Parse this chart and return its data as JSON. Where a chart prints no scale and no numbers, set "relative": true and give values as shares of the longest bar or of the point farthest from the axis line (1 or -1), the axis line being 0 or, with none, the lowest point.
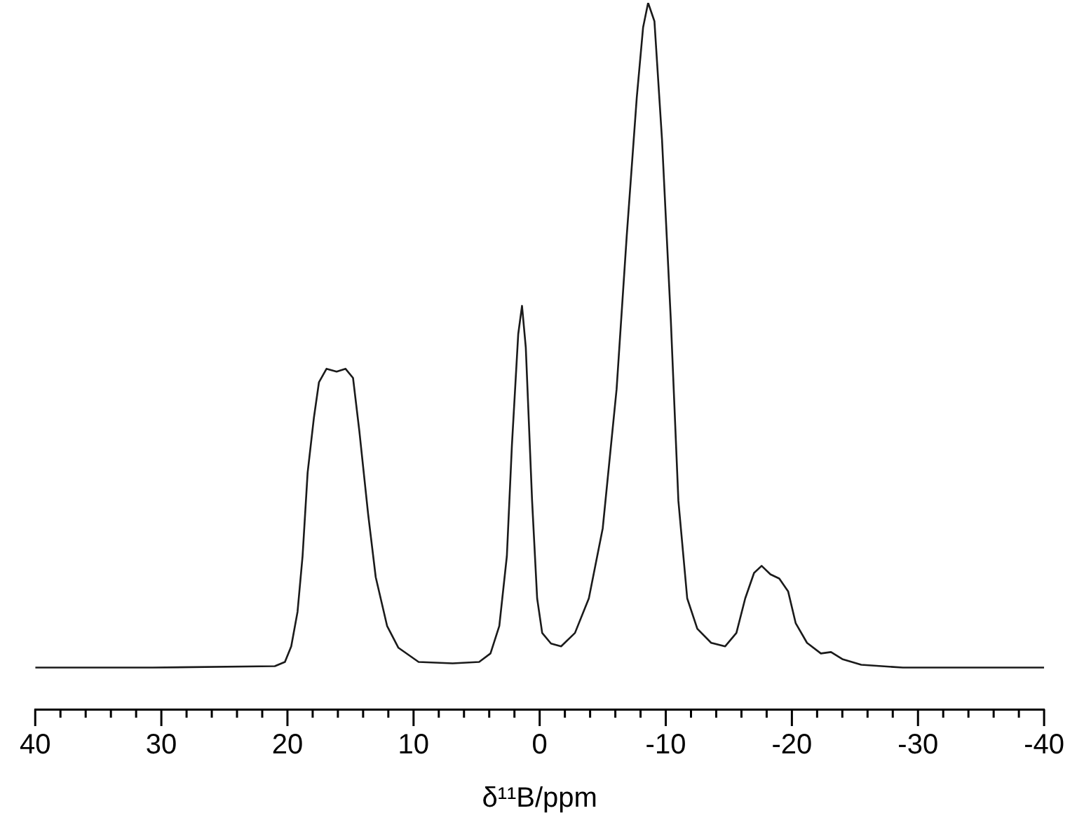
{
  "chart_data": {
    "type": "line",
    "xlabel": "δ¹¹B/ppm",
    "relative": true,
    "marker": "none",
    "line_style": "solid",
    "grid": false,
    "legend": false,
    "tick_labels": "x",
    "xlim": [
      40,
      -40
    ],
    "xticks": [
      40,
      {
        "value": 38,
        "label": null
      },
      {
        "value": 36,
        "label": null
      },
      {
        "value": 34,
        "label": null
      },
      {
        "value": 32,
        "label": null
      },
      30,
      {
        "value": 28,
        "label": null
      },
      {
        "value": 26,
        "label": null
      },
      {
        "value": 24,
        "label": null
      },
      {
        "value": 22,
        "label": null
      },
      20,
      {
        "value": 18,
        "label": null
      },
      {
        "value": 16,
        "label": null
      },
      {
        "value": 14,
        "label": null
      },
      {
        "value": 12,
        "label": null
      },
      10,
      {
        "value": 8,
        "label": null
      },
      {
        "value": 6,
        "label": null
      },
      {
        "value": 4,
        "label": null
      },
      {
        "value": 2,
        "label": null
      },
      0,
      {
        "value": -2,
        "label": null
      },
      {
        "value": -4,
        "label": null
      },
      {
        "value": -6,
        "label": null
      },
      {
        "value": -8,
        "label": null
      },
      -10,
      {
        "value": -12,
        "label": null
      },
      {
        "value": -14,
        "label": null
      },
      {
        "value": -16,
        "label": null
      },
      {
        "value": -18,
        "label": null
      },
      -20,
      {
        "value": -22,
        "label": null
      },
      {
        "value": -24,
        "label": null
      },
      {
        "value": -26,
        "label": null
      },
      {
        "value": -28,
        "label": null
      },
      -30,
      {
        "value": -32,
        "label": null
      },
      {
        "value": -34,
        "label": null
      },
      {
        "value": -36,
        "label": null
      },
      {
        "value": -38,
        "label": null
      },
      -40
    ],
    "series": [
      {
        "color": "#1a1a1a",
        "x": [
          40,
          30.7,
          21,
          20.2,
          19.7,
          19.2,
          18.8,
          18.4,
          17.9,
          17.5,
          16.9,
          16.1,
          15.4,
          14.8,
          14.3,
          13.6,
          13.0,
          12.1,
          11.2,
          9.6,
          6.9,
          4.8,
          3.9,
          3.2,
          2.6,
          2.2,
          1.7,
          1.4,
          1.1,
          0.6,
          0.2,
          -0.2,
          -0.9,
          -1.7,
          -2.8,
          -3.9,
          -5.0,
          -6.1,
          -6.9,
          -7.7,
          -8.2,
          -8.6,
          -9.1,
          -9.7,
          -10.4,
          -11.0,
          -11.7,
          -12.5,
          -13.6,
          -14.7,
          -15.6,
          -16.3,
          -17.0,
          -17.6,
          -18.3,
          -19.0,
          -19.7,
          -20.3,
          -21.2,
          -22.3,
          -23.1,
          -24.0,
          -25.5,
          -28.8,
          -40
        ],
        "values": [
          0.059,
          0.059,
          0.061,
          0.067,
          0.089,
          0.138,
          0.217,
          0.335,
          0.413,
          0.463,
          0.482,
          0.478,
          0.482,
          0.469,
          0.394,
          0.276,
          0.187,
          0.118,
          0.087,
          0.067,
          0.065,
          0.067,
          0.079,
          0.118,
          0.217,
          0.374,
          0.531,
          0.571,
          0.512,
          0.295,
          0.157,
          0.108,
          0.093,
          0.089,
          0.108,
          0.157,
          0.256,
          0.453,
          0.669,
          0.866,
          0.965,
          1,
          0.974,
          0.807,
          0.551,
          0.295,
          0.157,
          0.114,
          0.094,
          0.089,
          0.108,
          0.157,
          0.193,
          0.203,
          0.191,
          0.185,
          0.167,
          0.122,
          0.094,
          0.079,
          0.081,
          0.071,
          0.063,
          0.059,
          0.059
        ]
      }
    ]
  }
}
